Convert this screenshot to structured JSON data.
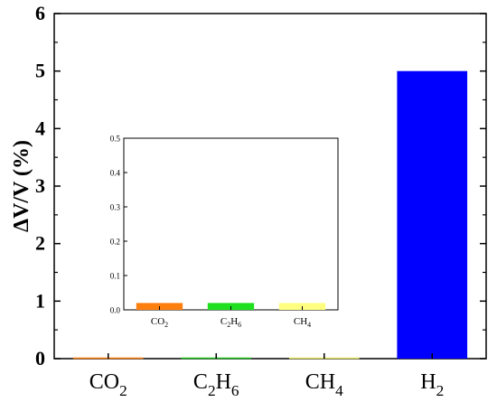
{
  "chart_data": [
    {
      "type": "bar",
      "ylabel": "ΔV/V (%)",
      "xlabel": "",
      "ylim": [
        0,
        6
      ],
      "yticks": [
        "0",
        "1",
        "2",
        "3",
        "4",
        "5",
        "6"
      ],
      "categories": [
        {
          "base": "CO",
          "sub": "2"
        },
        {
          "parts": [
            {
              "base": "C",
              "sub": "2"
            },
            {
              "base": "H",
              "sub": "6"
            }
          ]
        },
        {
          "base": "CH",
          "sub": "4"
        },
        {
          "base": "H",
          "sub": "2"
        }
      ],
      "values": [
        0.02,
        0.02,
        0.02,
        5.0
      ],
      "colors": [
        "#FF7F0E",
        "#1FBF1F",
        "#E8E866",
        "#0000FF"
      ],
      "grid": false
    },
    {
      "type": "bar",
      "role": "inset",
      "ylim": [
        0,
        0.5
      ],
      "yticks": [
        "0.0",
        "0.1",
        "0.2",
        "0.3",
        "0.4",
        "0.5"
      ],
      "categories": [
        {
          "base": "CO",
          "sub": "2"
        },
        {
          "parts": [
            {
              "base": "C",
              "sub": "2"
            },
            {
              "base": "H",
              "sub": "6"
            }
          ]
        },
        {
          "base": "CH",
          "sub": "4"
        }
      ],
      "values": [
        0.02,
        0.02,
        0.02
      ],
      "colors": [
        "#FF7F0E",
        "#1FE01F",
        "#FFFF80"
      ],
      "grid": false
    }
  ]
}
